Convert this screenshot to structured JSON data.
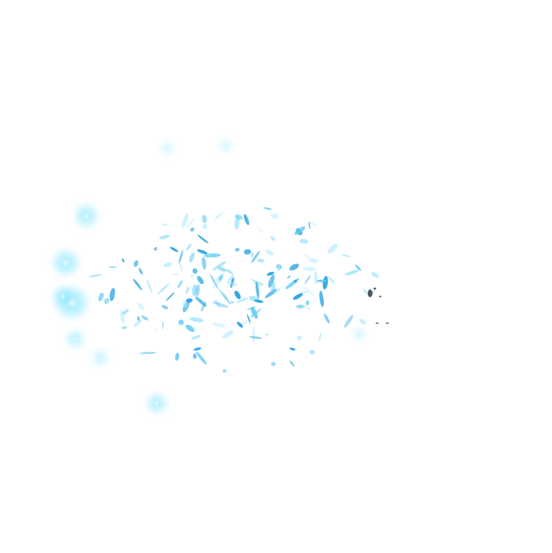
{
  "scene": {
    "background_color": "#ffffff",
    "particle_color_light": "#aee9ff",
    "particle_color_mid": "#5ccaf2",
    "particle_color_deep": "#1f9fe0",
    "glow_color": "#7fe4ff",
    "dark_fleck_color": "#2f3a40"
  }
}
